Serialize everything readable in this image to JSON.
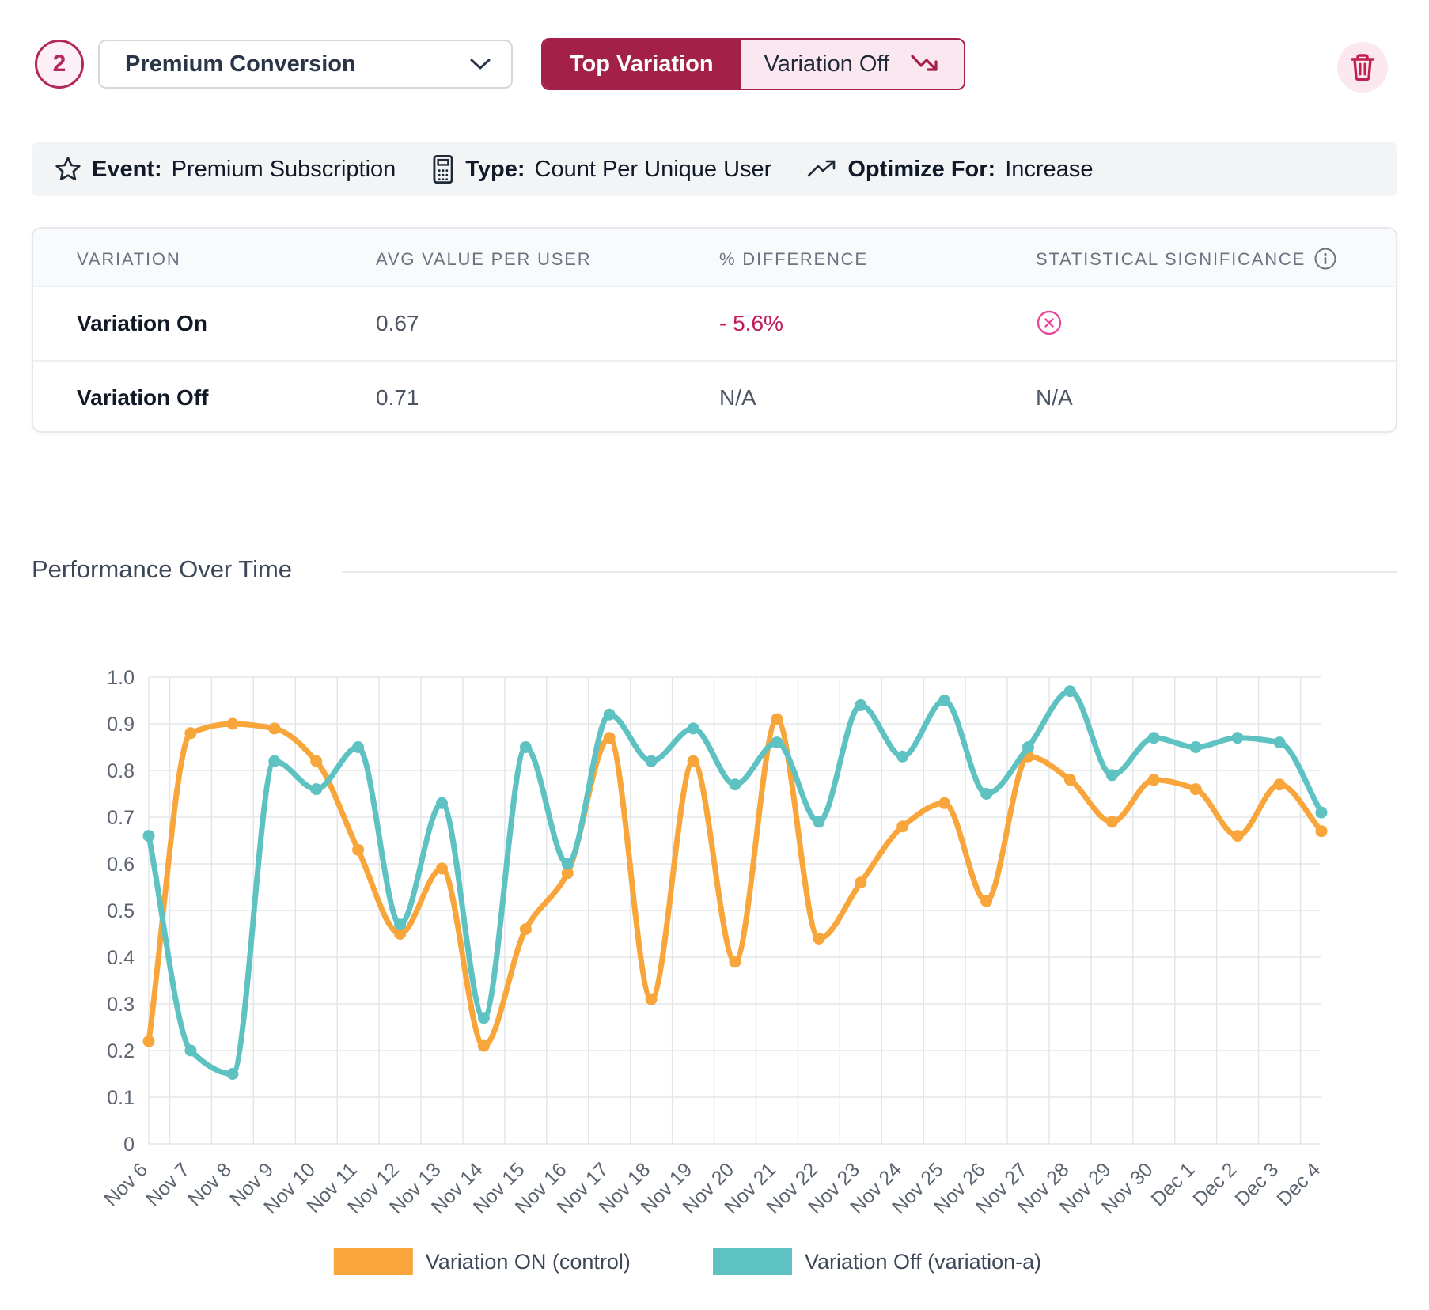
{
  "header": {
    "badge_number": "2",
    "metric_dropdown": {
      "value": "Premium Conversion"
    },
    "toggle": {
      "top_label": "Top Variation",
      "winner_label": "Variation Off"
    }
  },
  "event_bar": {
    "event_label": "Event:",
    "event_value": "Premium Subscription",
    "type_label": "Type:",
    "type_value": "Count Per Unique User",
    "optimize_label": "Optimize For:",
    "optimize_value": "Increase"
  },
  "results_table": {
    "columns": [
      "VARIATION",
      "AVG VALUE PER USER",
      "% DIFFERENCE",
      "STATISTICAL SIGNIFICANCE"
    ],
    "rows": [
      {
        "variation": "Variation On",
        "avg_value": "0.67",
        "difference": "- 5.6%",
        "significance": "not-significant-icon"
      },
      {
        "variation": "Variation Off",
        "avg_value": "0.71",
        "difference": "N/A",
        "significance": "N/A"
      }
    ]
  },
  "chart_section": {
    "title": "Performance Over Time"
  },
  "colors": {
    "accent": "#A32148",
    "accent_light": "#FBE7F0",
    "negative": "#C2185B",
    "orange": "#F8A63B",
    "teal": "#5FC2C2",
    "grid": "#E3E6E9"
  },
  "chart_data": {
    "type": "line",
    "title": "Performance Over Time",
    "x": [
      "Nov 6",
      "Nov 7",
      "Nov 8",
      "Nov 9",
      "Nov 10",
      "Nov 11",
      "Nov 12",
      "Nov 13",
      "Nov 14",
      "Nov 15",
      "Nov 16",
      "Nov 17",
      "Nov 18",
      "Nov 19",
      "Nov 20",
      "Nov 21",
      "Nov 22",
      "Nov 23",
      "Nov 24",
      "Nov 25",
      "Nov 26",
      "Nov 27",
      "Nov 28",
      "Nov 29",
      "Nov 30",
      "Dec 1",
      "Dec 2",
      "Dec 3",
      "Dec 4"
    ],
    "series": [
      {
        "name": "Variation ON (control)",
        "color": "#F8A63B",
        "values": [
          0.22,
          0.88,
          0.9,
          0.89,
          0.82,
          0.63,
          0.45,
          0.59,
          0.21,
          0.46,
          0.58,
          0.87,
          0.31,
          0.82,
          0.39,
          0.91,
          0.44,
          0.56,
          0.68,
          0.73,
          0.52,
          0.83,
          0.78,
          0.69,
          0.78,
          0.76,
          0.66,
          0.77,
          0.67
        ]
      },
      {
        "name": "Variation Off (variation-a)",
        "color": "#5FC2C2",
        "values": [
          0.66,
          0.2,
          0.15,
          0.82,
          0.76,
          0.85,
          0.47,
          0.73,
          0.27,
          0.85,
          0.6,
          0.92,
          0.82,
          0.89,
          0.77,
          0.86,
          0.69,
          0.94,
          0.83,
          0.95,
          0.75,
          0.85,
          0.97,
          0.79,
          0.87,
          0.85,
          0.87,
          0.86,
          0.71
        ]
      }
    ],
    "ylim": [
      0,
      1.0
    ],
    "ytick_step": 0.1,
    "grid": true,
    "legend_position": "bottom"
  }
}
